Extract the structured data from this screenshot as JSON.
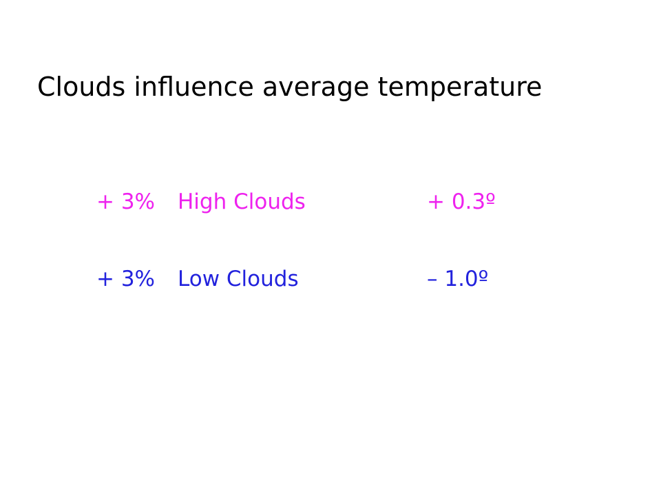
{
  "header": {
    "title": "Clouds influence average temperature"
  },
  "table": {
    "rows": [
      [
        "+ 3%",
        "High Clouds",
        "+ 0.3º"
      ],
      [
        "+ 3%",
        "Low Clouds",
        "– 1.0º"
      ]
    ]
  }
}
